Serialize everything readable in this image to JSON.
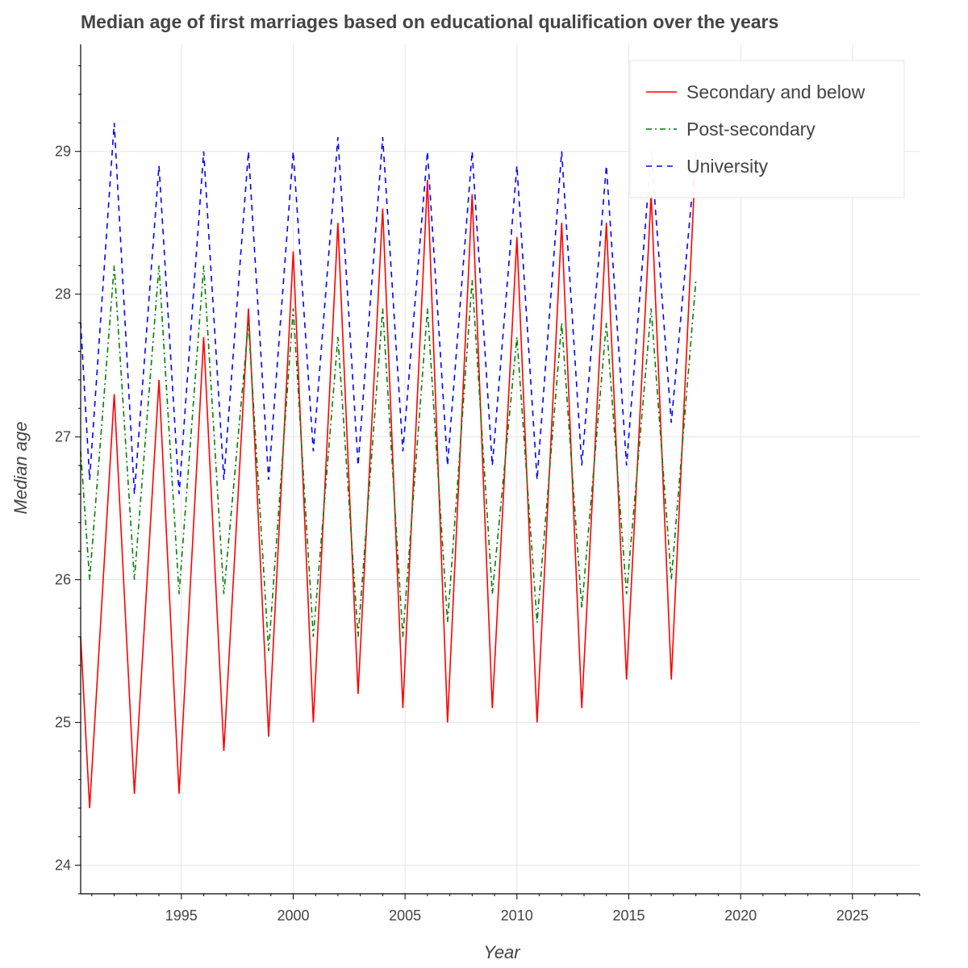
{
  "chart_data": {
    "type": "line",
    "title": "Median age of first marriages based on educational qualification over the years",
    "xlabel": "Year",
    "ylabel": "Median age",
    "xlim": [
      1990.5,
      2028
    ],
    "ylim": [
      23.8,
      29.75
    ],
    "xticks": [
      1995,
      2000,
      2005,
      2010,
      2015,
      2020,
      2025
    ],
    "yticks": [
      24,
      25,
      26,
      27,
      28,
      29
    ],
    "grid": true,
    "legend_position": "top-right",
    "series": [
      {
        "name": "Secondary and below",
        "color": "#ff0000",
        "dash": "solid",
        "points": [
          [
            1990.5,
            25.6
          ],
          [
            1990.9,
            24.4
          ],
          [
            1992,
            27.3
          ],
          [
            1992.9,
            24.5
          ],
          [
            1994,
            27.4
          ],
          [
            1994.9,
            24.5
          ],
          [
            1996,
            27.7
          ],
          [
            1996.9,
            24.8
          ],
          [
            1998,
            27.9
          ],
          [
            1998.9,
            24.9
          ],
          [
            2000,
            28.3
          ],
          [
            2000.9,
            25.0
          ],
          [
            2002,
            28.5
          ],
          [
            2002.9,
            25.2
          ],
          [
            2004,
            28.6
          ],
          [
            2004.9,
            25.1
          ],
          [
            2006,
            28.8
          ],
          [
            2006.9,
            25.0
          ],
          [
            2008,
            28.7
          ],
          [
            2008.9,
            25.1
          ],
          [
            2010,
            28.4
          ],
          [
            2010.9,
            25.0
          ],
          [
            2012,
            28.5
          ],
          [
            2012.9,
            25.1
          ],
          [
            2014,
            28.5
          ],
          [
            2014.9,
            25.3
          ],
          [
            2016,
            28.7
          ],
          [
            2016.9,
            25.3
          ],
          [
            2018,
            29.0
          ]
        ]
      },
      {
        "name": "Post-secondary",
        "color": "#008000",
        "dash": "dashdot",
        "points": [
          [
            1990.5,
            26.9
          ],
          [
            1990.9,
            26.0
          ],
          [
            1992,
            28.2
          ],
          [
            1992.9,
            26.0
          ],
          [
            1994,
            28.2
          ],
          [
            1994.9,
            25.9
          ],
          [
            1996,
            28.2
          ],
          [
            1996.9,
            25.9
          ],
          [
            1998,
            27.8
          ],
          [
            1998.9,
            25.5
          ],
          [
            2000,
            27.9
          ],
          [
            2000.9,
            25.6
          ],
          [
            2002,
            27.7
          ],
          [
            2002.9,
            25.6
          ],
          [
            2004,
            27.9
          ],
          [
            2004.9,
            25.6
          ],
          [
            2006,
            27.9
          ],
          [
            2006.9,
            25.7
          ],
          [
            2008,
            28.1
          ],
          [
            2008.9,
            25.9
          ],
          [
            2010,
            27.7
          ],
          [
            2010.9,
            25.7
          ],
          [
            2012,
            27.8
          ],
          [
            2012.9,
            25.8
          ],
          [
            2014,
            27.8
          ],
          [
            2014.9,
            25.9
          ],
          [
            2016,
            27.9
          ],
          [
            2016.9,
            26.0
          ],
          [
            2018,
            28.1
          ]
        ]
      },
      {
        "name": "University",
        "color": "#0000ff",
        "dash": "dashed",
        "points": [
          [
            1990.5,
            27.8
          ],
          [
            1990.9,
            26.7
          ],
          [
            1992,
            29.2
          ],
          [
            1992.9,
            26.6
          ],
          [
            1994,
            28.9
          ],
          [
            1994.9,
            26.6
          ],
          [
            1996,
            29.0
          ],
          [
            1996.9,
            26.7
          ],
          [
            1998,
            29.0
          ],
          [
            1998.9,
            26.7
          ],
          [
            2000,
            29.0
          ],
          [
            2000.9,
            26.9
          ],
          [
            2002,
            29.1
          ],
          [
            2002.9,
            26.8
          ],
          [
            2004,
            29.1
          ],
          [
            2004.9,
            26.9
          ],
          [
            2006,
            29.0
          ],
          [
            2006.9,
            26.8
          ],
          [
            2008,
            29.0
          ],
          [
            2008.9,
            26.8
          ],
          [
            2010,
            28.9
          ],
          [
            2010.9,
            26.7
          ],
          [
            2012,
            29.0
          ],
          [
            2012.9,
            26.8
          ],
          [
            2014,
            28.9
          ],
          [
            2014.9,
            26.8
          ],
          [
            2016,
            29.0
          ],
          [
            2016.9,
            27.1
          ],
          [
            2018,
            29.0
          ]
        ]
      }
    ]
  }
}
